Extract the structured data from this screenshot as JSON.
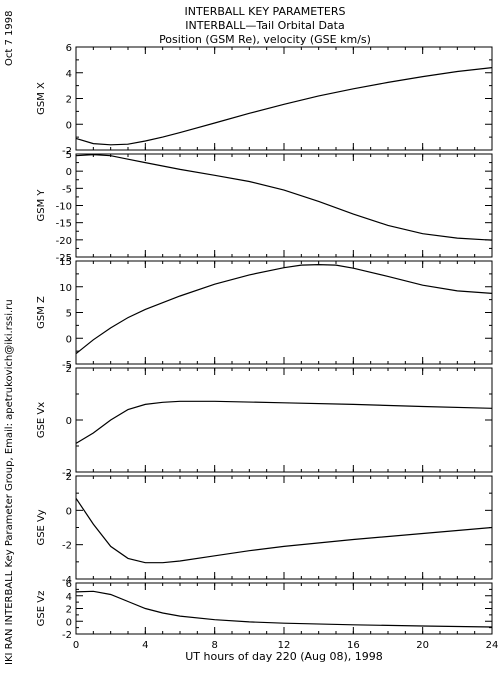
{
  "header": {
    "title": "INTERBALL KEY PARAMETERS",
    "subtitle": "INTERBALL—Tail Orbital Data",
    "subtitle2": "Position (GSM Re), velocity (GSE km/s)"
  },
  "side_text": {
    "date": "Oct  7 1998",
    "credit": "IKI RAN INTERBALL Key Parameter Group, Email: apetrukovich@iki.rssi.ru"
  },
  "chart_data": [
    {
      "type": "line",
      "ylabel": "GSM X",
      "ylim": [
        -2,
        6
      ],
      "yticks": [
        "-2",
        "0",
        "2",
        "4",
        "6"
      ],
      "x": [
        0,
        1,
        2,
        3,
        4,
        5,
        6,
        8,
        10,
        12,
        14,
        16,
        18,
        20,
        22,
        24
      ],
      "values": [
        -1.1,
        -1.5,
        -1.6,
        -1.55,
        -1.3,
        -1.0,
        -0.65,
        0.1,
        0.85,
        1.55,
        2.2,
        2.75,
        3.25,
        3.7,
        4.1,
        4.4
      ]
    },
    {
      "type": "line",
      "ylabel": "GSM Y",
      "ylim": [
        -25,
        5
      ],
      "yticks": [
        "-25",
        "-20",
        "-15",
        "-10",
        "-5",
        "0",
        "5"
      ],
      "x": [
        0,
        1,
        2,
        3,
        4,
        6,
        8,
        10,
        12,
        14,
        16,
        18,
        20,
        22,
        24
      ],
      "values": [
        4.5,
        4.8,
        4.5,
        3.5,
        2.5,
        0.5,
        -1.2,
        -3.0,
        -5.5,
        -8.8,
        -12.5,
        -15.8,
        -18.2,
        -19.5,
        -20.1
      ]
    },
    {
      "type": "line",
      "ylabel": "GSM Z",
      "ylim": [
        -5,
        15
      ],
      "yticks": [
        "-5",
        "0",
        "5",
        "10",
        "15"
      ],
      "x": [
        0,
        1,
        2,
        3,
        4,
        6,
        8,
        10,
        12,
        13,
        14,
        15,
        16,
        18,
        20,
        22,
        24
      ],
      "values": [
        -3.0,
        -0.3,
        2.0,
        4.0,
        5.6,
        8.2,
        10.5,
        12.3,
        13.7,
        14.2,
        14.3,
        14.2,
        13.6,
        12.0,
        10.3,
        9.2,
        8.7
      ]
    },
    {
      "type": "line",
      "ylabel": "GSE Vx",
      "ylim": [
        -2,
        2
      ],
      "yticks": [
        "-2",
        "0",
        "2"
      ],
      "x": [
        0,
        1,
        2,
        3,
        4,
        5,
        6,
        8,
        12,
        16,
        20,
        24
      ],
      "values": [
        -0.9,
        -0.5,
        0.0,
        0.4,
        0.6,
        0.68,
        0.72,
        0.72,
        0.66,
        0.6,
        0.52,
        0.45
      ]
    },
    {
      "type": "line",
      "ylabel": "GSE Vy",
      "ylim": [
        -4,
        2
      ],
      "yticks": [
        "-4",
        "-2",
        "0",
        "2"
      ],
      "x": [
        0,
        1,
        2,
        3,
        4,
        5,
        6,
        8,
        10,
        12,
        16,
        20,
        24
      ],
      "values": [
        0.7,
        -0.8,
        -2.1,
        -2.8,
        -3.05,
        -3.05,
        -2.95,
        -2.65,
        -2.35,
        -2.1,
        -1.7,
        -1.35,
        -1.0
      ]
    },
    {
      "type": "line",
      "ylabel": "GSE Vz",
      "ylim": [
        -2,
        6
      ],
      "yticks": [
        "-2",
        "0",
        "2",
        "4",
        "6"
      ],
      "x": [
        0,
        1,
        2,
        3,
        4,
        5,
        6,
        8,
        10,
        12,
        16,
        20,
        24
      ],
      "values": [
        4.6,
        4.7,
        4.2,
        3.1,
        2.0,
        1.3,
        0.8,
        0.25,
        -0.1,
        -0.3,
        -0.55,
        -0.75,
        -0.9
      ]
    }
  ],
  "x_axis": {
    "range": [
      0,
      24
    ],
    "ticks": [
      "0",
      "4",
      "8",
      "12",
      "16",
      "20",
      "24"
    ],
    "label": "UT hours of day 220 (Aug 08), 1998"
  }
}
